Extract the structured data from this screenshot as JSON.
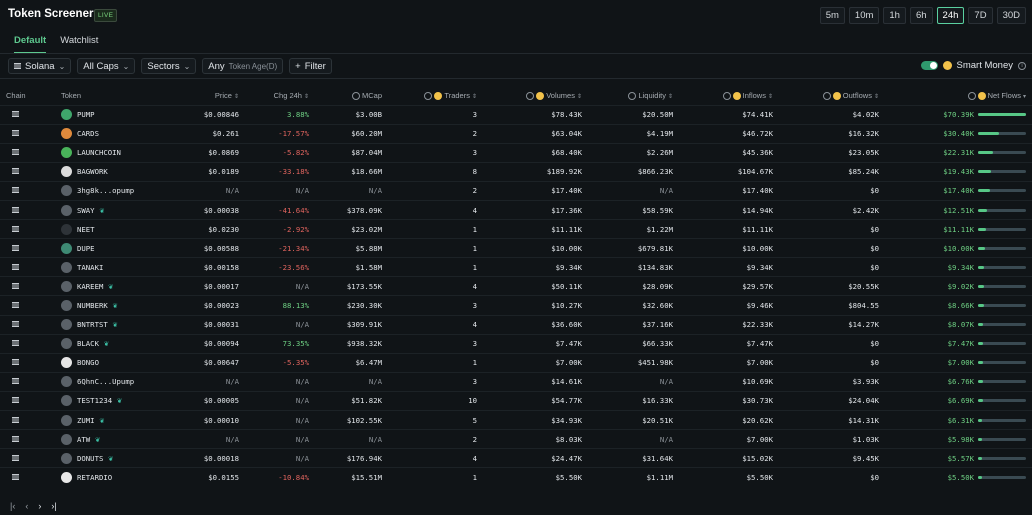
{
  "header": {
    "title": "Token Screener",
    "badge": "LIVE"
  },
  "timeframes": [
    {
      "label": "5m",
      "active": false
    },
    {
      "label": "10m",
      "active": false
    },
    {
      "label": "1h",
      "active": false
    },
    {
      "label": "6h",
      "active": false
    },
    {
      "label": "24h",
      "active": true
    },
    {
      "label": "7D",
      "active": false
    },
    {
      "label": "30D",
      "active": false
    }
  ],
  "tabs": [
    {
      "label": "Default",
      "active": true
    },
    {
      "label": "Watchlist",
      "active": false
    }
  ],
  "filters": {
    "chain": "Solana",
    "caps": "All Caps",
    "sectors": "Sectors",
    "age_value": "Any",
    "age_label": "Token Age(D)",
    "filter": "Filter"
  },
  "smart_money": {
    "label": "Smart Money",
    "enabled": true
  },
  "columns": [
    "Chain",
    "Token",
    "Price",
    "Chg 24h",
    "MCap",
    "Traders",
    "Volumes",
    "Liquidity",
    "Inflows",
    "Outflows",
    "Net Flows"
  ],
  "rows": [
    {
      "token": "PUMP",
      "leaf": false,
      "price": "$0.00846",
      "chg": "3.88%",
      "chg_dir": "pos",
      "mcap": "$3.00B",
      "traders": "3",
      "volumes": "$78.43K",
      "liquidity": "$20.50M",
      "inflows": "$74.41K",
      "outflows": "$4.02K",
      "netflows": "$70.39K",
      "netflow_fraction": 1.0
    },
    {
      "token": "CARDS",
      "leaf": false,
      "price": "$0.261",
      "chg": "-17.57%",
      "chg_dir": "neg",
      "mcap": "$60.20M",
      "traders": "2",
      "volumes": "$63.04K",
      "liquidity": "$4.19M",
      "inflows": "$46.72K",
      "outflows": "$16.32K",
      "netflows": "$30.40K",
      "netflow_fraction": 0.43
    },
    {
      "token": "LAUNCHCOIN",
      "leaf": false,
      "price": "$0.0869",
      "chg": "-5.82%",
      "chg_dir": "neg",
      "mcap": "$87.04M",
      "traders": "3",
      "volumes": "$68.40K",
      "liquidity": "$2.26M",
      "inflows": "$45.36K",
      "outflows": "$23.05K",
      "netflows": "$22.31K",
      "netflow_fraction": 0.32
    },
    {
      "token": "BAGWORK",
      "leaf": false,
      "price": "$0.0189",
      "chg": "-33.18%",
      "chg_dir": "neg",
      "mcap": "$18.66M",
      "traders": "8",
      "volumes": "$189.92K",
      "liquidity": "$866.23K",
      "inflows": "$104.67K",
      "outflows": "$85.24K",
      "netflows": "$19.43K",
      "netflow_fraction": 0.28
    },
    {
      "token": "3hg8k...opump",
      "leaf": false,
      "price": "N/A",
      "chg": "N/A",
      "chg_dir": "muted",
      "mcap": "N/A",
      "traders": "2",
      "volumes": "$17.40K",
      "liquidity": "N/A",
      "inflows": "$17.40K",
      "outflows": "$0",
      "netflows": "$17.40K",
      "netflow_fraction": 0.25
    },
    {
      "token": "SWAY",
      "leaf": true,
      "price": "$0.00038",
      "chg": "-41.64%",
      "chg_dir": "neg",
      "mcap": "$378.09K",
      "traders": "4",
      "volumes": "$17.36K",
      "liquidity": "$58.59K",
      "inflows": "$14.94K",
      "outflows": "$2.42K",
      "netflows": "$12.51K",
      "netflow_fraction": 0.18
    },
    {
      "token": "NEET",
      "leaf": false,
      "price": "$0.0230",
      "chg": "-2.92%",
      "chg_dir": "neg",
      "mcap": "$23.02M",
      "traders": "1",
      "volumes": "$11.11K",
      "liquidity": "$1.22M",
      "inflows": "$11.11K",
      "outflows": "$0",
      "netflows": "$11.11K",
      "netflow_fraction": 0.16
    },
    {
      "token": "DUPE",
      "leaf": false,
      "price": "$0.00588",
      "chg": "-21.34%",
      "chg_dir": "neg",
      "mcap": "$5.88M",
      "traders": "1",
      "volumes": "$10.00K",
      "liquidity": "$679.81K",
      "inflows": "$10.00K",
      "outflows": "$0",
      "netflows": "$10.00K",
      "netflow_fraction": 0.14
    },
    {
      "token": "TANAKI",
      "leaf": false,
      "price": "$0.00158",
      "chg": "-23.56%",
      "chg_dir": "neg",
      "mcap": "$1.58M",
      "traders": "1",
      "volumes": "$9.34K",
      "liquidity": "$134.83K",
      "inflows": "$9.34K",
      "outflows": "$0",
      "netflows": "$9.34K",
      "netflow_fraction": 0.13
    },
    {
      "token": "KAREEM",
      "leaf": true,
      "price": "$0.00017",
      "chg": "N/A",
      "chg_dir": "muted",
      "mcap": "$173.55K",
      "traders": "4",
      "volumes": "$50.11K",
      "liquidity": "$28.09K",
      "inflows": "$29.57K",
      "outflows": "$20.55K",
      "netflows": "$9.02K",
      "netflow_fraction": 0.13
    },
    {
      "token": "NUMBERK",
      "leaf": true,
      "price": "$0.00023",
      "chg": "88.13%",
      "chg_dir": "pos",
      "mcap": "$230.30K",
      "traders": "3",
      "volumes": "$10.27K",
      "liquidity": "$32.60K",
      "inflows": "$9.46K",
      "outflows": "$804.55",
      "netflows": "$8.66K",
      "netflow_fraction": 0.12
    },
    {
      "token": "BNTRTST",
      "leaf": true,
      "price": "$0.00031",
      "chg": "N/A",
      "chg_dir": "muted",
      "mcap": "$309.91K",
      "traders": "4",
      "volumes": "$36.60K",
      "liquidity": "$37.16K",
      "inflows": "$22.33K",
      "outflows": "$14.27K",
      "netflows": "$8.07K",
      "netflow_fraction": 0.11
    },
    {
      "token": "BLACK",
      "leaf": true,
      "price": "$0.00094",
      "chg": "73.35%",
      "chg_dir": "pos",
      "mcap": "$938.32K",
      "traders": "3",
      "volumes": "$7.47K",
      "liquidity": "$66.33K",
      "inflows": "$7.47K",
      "outflows": "$0",
      "netflows": "$7.47K",
      "netflow_fraction": 0.11
    },
    {
      "token": "BONGO",
      "leaf": false,
      "price": "$0.00647",
      "chg": "-5.35%",
      "chg_dir": "neg",
      "mcap": "$6.47M",
      "traders": "1",
      "volumes": "$7.00K",
      "liquidity": "$451.98K",
      "inflows": "$7.00K",
      "outflows": "$0",
      "netflows": "$7.00K",
      "netflow_fraction": 0.1
    },
    {
      "token": "6QhnC...Upump",
      "leaf": false,
      "price": "N/A",
      "chg": "N/A",
      "chg_dir": "muted",
      "mcap": "N/A",
      "traders": "3",
      "volumes": "$14.61K",
      "liquidity": "N/A",
      "inflows": "$10.69K",
      "outflows": "$3.93K",
      "netflows": "$6.76K",
      "netflow_fraction": 0.1
    },
    {
      "token": "TEST1234",
      "leaf": true,
      "price": "$0.00005",
      "chg": "N/A",
      "chg_dir": "muted",
      "mcap": "$51.82K",
      "traders": "10",
      "volumes": "$54.77K",
      "liquidity": "$16.33K",
      "inflows": "$30.73K",
      "outflows": "$24.04K",
      "netflows": "$6.69K",
      "netflow_fraction": 0.1
    },
    {
      "token": "ZUMI",
      "leaf": true,
      "price": "$0.00010",
      "chg": "N/A",
      "chg_dir": "muted",
      "mcap": "$102.55K",
      "traders": "5",
      "volumes": "$34.93K",
      "liquidity": "$20.51K",
      "inflows": "$20.62K",
      "outflows": "$14.31K",
      "netflows": "$6.31K",
      "netflow_fraction": 0.09
    },
    {
      "token": "ATW",
      "leaf": true,
      "price": "N/A",
      "chg": "N/A",
      "chg_dir": "muted",
      "mcap": "N/A",
      "traders": "2",
      "volumes": "$8.03K",
      "liquidity": "N/A",
      "inflows": "$7.00K",
      "outflows": "$1.03K",
      "netflows": "$5.98K",
      "netflow_fraction": 0.08
    },
    {
      "token": "DONUTS",
      "leaf": true,
      "price": "$0.00018",
      "chg": "N/A",
      "chg_dir": "muted",
      "mcap": "$176.94K",
      "traders": "4",
      "volumes": "$24.47K",
      "liquidity": "$31.64K",
      "inflows": "$15.02K",
      "outflows": "$9.45K",
      "netflows": "$5.57K",
      "netflow_fraction": 0.08
    },
    {
      "token": "RETARDIO",
      "leaf": false,
      "price": "$0.0155",
      "chg": "-10.84%",
      "chg_dir": "neg",
      "mcap": "$15.51M",
      "traders": "1",
      "volumes": "$5.50K",
      "liquidity": "$1.11M",
      "inflows": "$5.50K",
      "outflows": "$0",
      "netflows": "$5.50K",
      "netflow_fraction": 0.08
    }
  ],
  "pager": [
    "|‹",
    "‹",
    "›",
    "›|"
  ]
}
